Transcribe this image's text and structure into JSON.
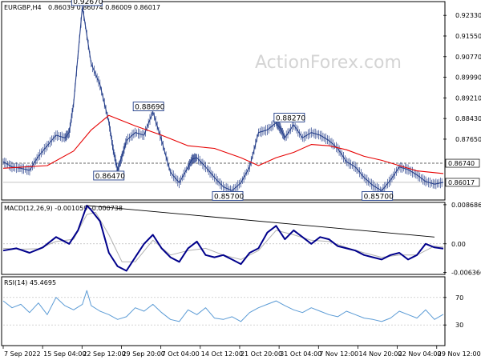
{
  "header": {
    "symbol": "EURGBP,H4",
    "ohlc": "0.86039 0.86074 0.86009 0.86017"
  },
  "watermark": "ActionForex.com",
  "colors": {
    "price": "#27408b",
    "ma": "#e60000",
    "macd": "#00008b",
    "signal": "#b0b0b0",
    "trend": "#000000",
    "rsi": "#5b9bd5",
    "grid": "#bbbbbb",
    "box_fill": "#ffffff",
    "box_stroke": "#1f3c88"
  },
  "chart_data": [
    {
      "type": "line",
      "panel": "price",
      "title": "EURGBP,H4",
      "ylim": [
        0.8535,
        0.9285
      ],
      "y_ticks": [
        "0.92330",
        "0.91550",
        "0.90770",
        "0.89990",
        "0.89210",
        "0.88430",
        "0.87650"
      ],
      "current_price_label": "0.86017",
      "level_label": "0.86740",
      "level_value": 0.8674,
      "series": [
        {
          "role": "price",
          "x": [
            0,
            2,
            4,
            6,
            8,
            10,
            12,
            14,
            15,
            16,
            18,
            20,
            22,
            24,
            25,
            26,
            27,
            28,
            30,
            32,
            34,
            36,
            38,
            40,
            42,
            43,
            44,
            46,
            48,
            50,
            52,
            54,
            56,
            58,
            60,
            62,
            63,
            64,
            66,
            68,
            70,
            72,
            74,
            76,
            78,
            80,
            82,
            84,
            86,
            88,
            90,
            92,
            94,
            96,
            98,
            100
          ],
          "y": [
            0.868,
            0.866,
            0.8655,
            0.8647,
            0.87,
            0.874,
            0.878,
            0.877,
            0.879,
            0.89,
            0.9267,
            0.905,
            0.897,
            0.883,
            0.8725,
            0.8647,
            0.87,
            0.876,
            0.879,
            0.878,
            0.8869,
            0.876,
            0.864,
            0.86,
            0.866,
            0.869,
            0.8695,
            0.866,
            0.862,
            0.8585,
            0.857,
            0.86,
            0.866,
            0.879,
            0.88,
            0.8827,
            0.8805,
            0.877,
            0.882,
            0.877,
            0.879,
            0.878,
            0.876,
            0.873,
            0.868,
            0.866,
            0.862,
            0.859,
            0.857,
            0.861,
            0.866,
            0.865,
            0.863,
            0.8605,
            0.8595,
            0.86017
          ]
        },
        {
          "role": "moving-average",
          "x": [
            0,
            10,
            16,
            20,
            24,
            30,
            36,
            42,
            48,
            54,
            58,
            62,
            66,
            70,
            74,
            78,
            82,
            86,
            90,
            94,
            100
          ],
          "y": [
            0.8655,
            0.8665,
            0.872,
            0.88,
            0.8855,
            0.8815,
            0.878,
            0.874,
            0.873,
            0.8695,
            0.8665,
            0.8695,
            0.8715,
            0.8745,
            0.874,
            0.8725,
            0.87,
            0.8685,
            0.8665,
            0.8645,
            0.8635
          ]
        }
      ],
      "annotations": [
        {
          "label": "0.92670",
          "x": 19,
          "y": 0.9267
        },
        {
          "label": "0.88690",
          "x": 33,
          "y": 0.8869
        },
        {
          "label": "0.86470",
          "x": 24,
          "y": 0.8647
        },
        {
          "label": "0.85700",
          "x": 51,
          "y": 0.857
        },
        {
          "label": "0.88270",
          "x": 65,
          "y": 0.8827
        },
        {
          "label": "0.85700",
          "x": 85,
          "y": 0.857
        }
      ]
    },
    {
      "type": "line",
      "panel": "macd",
      "title": "MACD(12,26,9) -0.001059 -0.000738",
      "ylim": [
        -0.0068,
        0.0092
      ],
      "y_ticks": [
        "0.008686",
        "0.00",
        "-0.006366"
      ],
      "series": [
        {
          "role": "macd",
          "x": [
            0,
            3,
            6,
            9,
            12,
            15,
            17,
            19,
            20,
            22,
            24,
            26,
            28,
            30,
            32,
            34,
            36,
            38,
            40,
            42,
            44,
            46,
            48,
            50,
            52,
            54,
            56,
            58,
            60,
            62,
            64,
            66,
            68,
            70,
            72,
            74,
            76,
            78,
            80,
            82,
            84,
            86,
            88,
            90,
            92,
            94,
            96,
            98,
            100
          ],
          "y": [
            -0.0015,
            -0.001,
            -0.002,
            -0.0008,
            0.0015,
            0.0,
            0.003,
            0.0085,
            0.0075,
            0.005,
            -0.002,
            -0.005,
            -0.006,
            -0.003,
            0.0,
            0.002,
            -0.001,
            -0.003,
            -0.004,
            -0.001,
            0.0005,
            -0.0025,
            -0.003,
            -0.0025,
            -0.0035,
            -0.0045,
            -0.002,
            -0.001,
            0.0025,
            0.004,
            0.001,
            0.003,
            0.0015,
            0.0,
            0.0015,
            0.001,
            -0.0005,
            -0.001,
            -0.0015,
            -0.0025,
            -0.003,
            -0.0035,
            -0.0025,
            -0.002,
            -0.0035,
            -0.0025,
            0.0,
            -0.0008,
            -0.001059
          ]
        },
        {
          "role": "signal",
          "x": [
            0,
            4,
            8,
            12,
            16,
            19,
            21,
            24,
            27,
            30,
            34,
            38,
            42,
            46,
            50,
            54,
            58,
            62,
            66,
            70,
            74,
            78,
            82,
            86,
            90,
            94,
            98,
            100
          ],
          "y": [
            -0.001,
            -0.0012,
            -0.0011,
            0.0005,
            0.001,
            0.0065,
            0.007,
            0.002,
            -0.004,
            -0.004,
            0.0008,
            -0.0025,
            -0.0015,
            -0.001,
            -0.0025,
            -0.0035,
            -0.0015,
            0.003,
            0.002,
            0.0008,
            0.0005,
            -0.0008,
            -0.002,
            -0.003,
            -0.0025,
            -0.0025,
            -0.0005,
            -0.000738
          ]
        },
        {
          "role": "trendline",
          "x": [
            19,
            98
          ],
          "y": [
            0.0085,
            0.0015
          ]
        }
      ]
    },
    {
      "type": "line",
      "panel": "rsi",
      "title": "RSI(14) 45.4695",
      "ylim": [
        0,
        100
      ],
      "y_ticks": [
        "70",
        "30"
      ],
      "series": [
        {
          "role": "rsi",
          "x": [
            0,
            2,
            4,
            6,
            8,
            10,
            12,
            14,
            16,
            18,
            19,
            20,
            22,
            24,
            26,
            28,
            30,
            32,
            34,
            36,
            38,
            40,
            42,
            44,
            46,
            48,
            50,
            52,
            54,
            56,
            58,
            60,
            62,
            64,
            66,
            68,
            70,
            72,
            74,
            76,
            78,
            80,
            82,
            84,
            86,
            88,
            90,
            92,
            94,
            96,
            98,
            100
          ],
          "y": [
            65,
            55,
            60,
            48,
            62,
            45,
            70,
            58,
            52,
            60,
            80,
            58,
            50,
            45,
            38,
            42,
            55,
            50,
            60,
            48,
            38,
            35,
            52,
            45,
            55,
            40,
            38,
            42,
            35,
            48,
            55,
            60,
            65,
            58,
            52,
            48,
            55,
            50,
            45,
            42,
            50,
            45,
            40,
            38,
            35,
            40,
            50,
            45,
            40,
            52,
            38,
            45.4695
          ]
        }
      ]
    }
  ],
  "time_axis": [
    "7 Sep 2022",
    "15 Sep 04:00",
    "22 Sep 12:00",
    "29 Sep 20:00",
    "7 Oct 04:00",
    "14 Oct 12:00",
    "21 Oct 20:00",
    "31 Oct 04:00",
    "7 Nov 12:00",
    "14 Nov 20:00",
    "22 Nov 04:00",
    "29 Nov 12:00"
  ]
}
